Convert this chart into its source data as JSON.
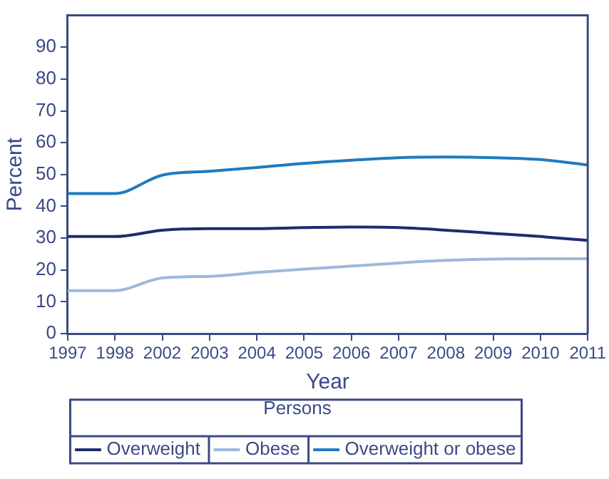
{
  "chart_data": {
    "type": "line",
    "xlabel": "Year",
    "ylabel": "Percent",
    "legend_title": "Persons",
    "categories": [
      "1997",
      "1998",
      "2002",
      "2003",
      "2004",
      "2005",
      "2006",
      "2007",
      "2008",
      "2009",
      "2010",
      "2011"
    ],
    "series": [
      {
        "name": "Overweight",
        "color": "#1a2e6e",
        "values": [
          30.5,
          30.5,
          32.5,
          33,
          33,
          33.3,
          33.5,
          33.3,
          32.5,
          31.5,
          30.5,
          29.3
        ]
      },
      {
        "name": "Obese",
        "color": "#9db8dc",
        "values": [
          13.5,
          13.5,
          17.5,
          18,
          19.2,
          20.3,
          21.2,
          22.2,
          23,
          23.4,
          23.5,
          23.5
        ]
      },
      {
        "name": "Overweight or obese",
        "color": "#1f7bc0",
        "values": [
          44,
          44,
          49.8,
          51,
          52.2,
          53.5,
          54.5,
          55.3,
          55.5,
          55.3,
          54.7,
          53
        ]
      }
    ],
    "ylim": [
      0,
      100
    ],
    "yticks": [
      0,
      10,
      20,
      30,
      40,
      50,
      60,
      70,
      80,
      90
    ],
    "grid": false,
    "legend": "bottom",
    "marker": "none",
    "line_style": "solid"
  }
}
